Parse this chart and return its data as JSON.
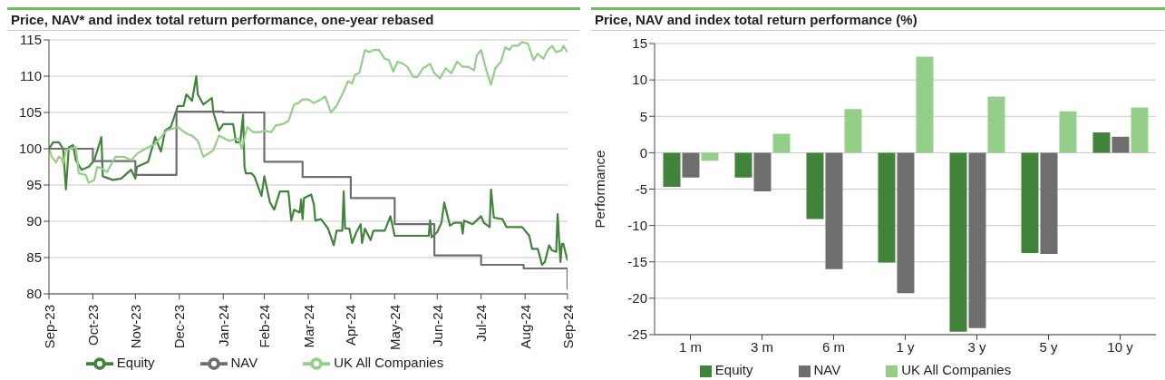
{
  "chart_data": [
    {
      "type": "line",
      "title": "Price, NAV* and index total return performance, one-year rebased",
      "xlim": [
        "2023-09-30",
        "2024-09-30"
      ],
      "xticks": [
        {
          "value": "2023-09-30",
          "label": "Sep-23"
        },
        {
          "value": "2023-10-31",
          "label": "Oct-23"
        },
        {
          "value": "2023-11-30",
          "label": "Nov-23"
        },
        {
          "value": "2023-12-31",
          "label": "Dec-23"
        },
        {
          "value": "2024-01-31",
          "label": "Jan-24"
        },
        {
          "value": "2024-02-29",
          "label": "Feb-24"
        },
        {
          "value": "2024-03-31",
          "label": "Mar-24"
        },
        {
          "value": "2024-04-30",
          "label": "Apr-24"
        },
        {
          "value": "2024-05-31",
          "label": "May-24"
        },
        {
          "value": "2024-06-30",
          "label": "Jun-24"
        },
        {
          "value": "2024-07-31",
          "label": "Jul-24"
        },
        {
          "value": "2024-08-31",
          "label": "Aug-24"
        },
        {
          "value": "2024-09-30",
          "label": "Sep-24"
        }
      ],
      "ylim": [
        80,
        115
      ],
      "yticks": [
        80,
        85,
        90,
        95,
        100,
        105,
        110,
        115
      ],
      "grid": "y",
      "legend": "bottom",
      "series": [
        {
          "name": "Equity",
          "type": "line",
          "color": "#41833a",
          "x": [
            "2023-09-30",
            "2023-10-03",
            "2023-10-07",
            "2023-10-10",
            "2023-10-12",
            "2023-10-14",
            "2023-10-17",
            "2023-10-19",
            "2023-10-23",
            "2023-10-28",
            "2023-11-01",
            "2023-11-06",
            "2023-11-07",
            "2023-11-14",
            "2023-11-20",
            "2023-11-27",
            "2023-11-30",
            "2023-12-01",
            "2023-12-09",
            "2023-12-14",
            "2023-12-18",
            "2023-12-21",
            "2023-12-25",
            "2023-12-30",
            "2024-01-03",
            "2024-01-05",
            "2024-01-09",
            "2024-01-12",
            "2024-01-13",
            "2024-01-17",
            "2024-01-23",
            "2024-01-24",
            "2024-01-28",
            "2024-01-31",
            "2024-02-07",
            "2024-02-09",
            "2024-02-12",
            "2024-02-14",
            "2024-02-15",
            "2024-02-16",
            "2024-02-20",
            "2024-02-22",
            "2024-02-27",
            "2024-02-29",
            "2024-03-04",
            "2024-03-07",
            "2024-03-11",
            "2024-03-17",
            "2024-03-19",
            "2024-03-21",
            "2024-03-25",
            "2024-03-26",
            "2024-03-27",
            "2024-03-28",
            "2024-04-02",
            "2024-04-04",
            "2024-04-05",
            "2024-04-09",
            "2024-04-14",
            "2024-04-18",
            "2024-04-20",
            "2024-04-24",
            "2024-04-25",
            "2024-04-26",
            "2024-04-29",
            "2024-05-01",
            "2024-05-04",
            "2024-05-07",
            "2024-05-08",
            "2024-05-10",
            "2024-05-14",
            "2024-05-16",
            "2024-05-24",
            "2024-05-28",
            "2024-05-31",
            "2024-06-11",
            "2024-06-24",
            "2024-06-25",
            "2024-06-26",
            "2024-06-30",
            "2024-07-03",
            "2024-07-05",
            "2024-07-09",
            "2024-07-12",
            "2024-07-17",
            "2024-07-18",
            "2024-07-19",
            "2024-07-25",
            "2024-07-31",
            "2024-08-02",
            "2024-08-06",
            "2024-08-07",
            "2024-08-09",
            "2024-08-15",
            "2024-08-18",
            "2024-08-29",
            "2024-09-03",
            "2024-09-05",
            "2024-09-09",
            "2024-09-12",
            "2024-09-14",
            "2024-09-17",
            "2024-09-19",
            "2024-09-22",
            "2024-09-23",
            "2024-09-25",
            "2024-09-26",
            "2024-09-27",
            "2024-09-30"
          ],
          "values": [
            100,
            100.9,
            100.9,
            100,
            94.4,
            100.2,
            100.5,
            98.4,
            97.1,
            97.5,
            98.4,
            101.6,
            96.2,
            95.7,
            95.9,
            97.1,
            95.9,
            97.5,
            98.2,
            101.6,
            99.6,
            102.5,
            103,
            105.9,
            105.9,
            107.5,
            106.6,
            110,
            107.5,
            106.1,
            107,
            105,
            102.5,
            103.4,
            103.4,
            100.9,
            100.9,
            104.7,
            97.5,
            96.6,
            96.6,
            96.2,
            93.5,
            96.2,
            92.6,
            91.6,
            94.1,
            94.1,
            90.1,
            91.6,
            91.2,
            93,
            90.3,
            93.2,
            93.7,
            92.3,
            90.1,
            90.3,
            89,
            86.7,
            88.7,
            88.7,
            94.1,
            89,
            89,
            87,
            88.5,
            89.6,
            87,
            89,
            87.4,
            88.7,
            88.7,
            90.7,
            88,
            88,
            88,
            90.1,
            87.8,
            88.5,
            89.8,
            92.6,
            89.4,
            89.8,
            89.8,
            88.3,
            90.1,
            89.6,
            90.7,
            89.8,
            89.2,
            94.4,
            90.5,
            90.3,
            89.2,
            89.2,
            88,
            86.2,
            86.2,
            84,
            84.4,
            86.7,
            86,
            85.8,
            91,
            84.4,
            86.9,
            86.9,
            84.6
          ]
        },
        {
          "name": "NAV",
          "type": "step",
          "color": "#6e6e6e",
          "x": [
            "2023-09-30",
            "2023-10-31",
            "2023-11-30",
            "2023-12-29",
            "2024-01-31",
            "2024-02-29",
            "2024-03-27",
            "2024-04-30",
            "2024-05-31",
            "2024-06-28",
            "2024-07-31",
            "2024-08-30",
            "2024-09-27",
            "2024-09-30"
          ],
          "values": [
            100,
            98.3,
            96.4,
            105.1,
            105,
            98.2,
            96.1,
            93.2,
            89.6,
            85.3,
            84,
            83.5,
            83.5,
            80.6
          ]
        },
        {
          "name": "UK All Companies",
          "type": "line",
          "color": "#94cf8a",
          "x": [
            "2023-09-30",
            "2023-10-02",
            "2023-10-05",
            "2023-10-07",
            "2023-10-09",
            "2023-10-10",
            "2023-10-12",
            "2023-10-15",
            "2023-10-19",
            "2023-10-21",
            "2023-10-26",
            "2023-10-28",
            "2023-11-01",
            "2023-11-03",
            "2023-11-06",
            "2023-11-10",
            "2023-11-16",
            "2023-11-22",
            "2023-11-27",
            "2023-12-01",
            "2023-12-07",
            "2023-12-14",
            "2023-12-22",
            "2023-12-30",
            "2024-01-02",
            "2024-01-06",
            "2024-01-09",
            "2024-01-13",
            "2024-01-17",
            "2024-01-24",
            "2024-01-28",
            "2024-02-04",
            "2024-02-11",
            "2024-02-13",
            "2024-02-17",
            "2024-02-21",
            "2024-02-26",
            "2024-02-29",
            "2024-03-05",
            "2024-03-08",
            "2024-03-13",
            "2024-03-17",
            "2024-03-21",
            "2024-03-24",
            "2024-03-27",
            "2024-03-31",
            "2024-04-04",
            "2024-04-09",
            "2024-04-12",
            "2024-04-16",
            "2024-04-20",
            "2024-04-25",
            "2024-04-28",
            "2024-05-01",
            "2024-05-03",
            "2024-05-06",
            "2024-05-10",
            "2024-05-13",
            "2024-05-16",
            "2024-05-20",
            "2024-05-24",
            "2024-05-27",
            "2024-05-30",
            "2024-06-02",
            "2024-06-06",
            "2024-06-09",
            "2024-06-13",
            "2024-06-16",
            "2024-06-20",
            "2024-06-25",
            "2024-06-28",
            "2024-07-02",
            "2024-07-06",
            "2024-07-10",
            "2024-07-14",
            "2024-07-18",
            "2024-07-22",
            "2024-07-26",
            "2024-07-28",
            "2024-07-31",
            "2024-08-04",
            "2024-08-07",
            "2024-08-10",
            "2024-08-14",
            "2024-08-17",
            "2024-08-20",
            "2024-08-22",
            "2024-08-26",
            "2024-08-29",
            "2024-09-02",
            "2024-09-06",
            "2024-09-09",
            "2024-09-13",
            "2024-09-16",
            "2024-09-19",
            "2024-09-22",
            "2024-09-26",
            "2024-09-27",
            "2024-09-30"
          ],
          "values": [
            100,
            98.9,
            98.1,
            98.9,
            98.6,
            97.9,
            99.8,
            100,
            100.2,
            96.6,
            96.4,
            95.3,
            95.7,
            97.5,
            97.3,
            96.8,
            98.9,
            98.9,
            98.4,
            99.3,
            100,
            100.7,
            102.5,
            103,
            102.5,
            102,
            101.8,
            101.1,
            98.9,
            99.8,
            101.8,
            101.1,
            101.4,
            100,
            103,
            102.3,
            102.3,
            102.5,
            102.3,
            103.2,
            103.4,
            103.8,
            106.1,
            106.3,
            106.8,
            106.8,
            106.3,
            106.8,
            107.2,
            105,
            105.9,
            107.9,
            109.3,
            109,
            110.2,
            110.4,
            113.6,
            113.3,
            113.6,
            113.6,
            112.4,
            112.2,
            110.6,
            112,
            111.7,
            111.3,
            109.9,
            109.9,
            111.1,
            111.7,
            110.4,
            109.7,
            111.1,
            110.4,
            112,
            111.3,
            111.3,
            110.8,
            112.9,
            113.6,
            110.6,
            108.8,
            111.1,
            112,
            114,
            113.6,
            114.2,
            114.2,
            114.7,
            114.5,
            112.2,
            113.1,
            112.4,
            113.6,
            114.2,
            113.3,
            113.6,
            114.2,
            113.3
          ]
        }
      ]
    },
    {
      "type": "bar",
      "title": "Price, NAV and index total return performance (%)",
      "ylabel": "Performance",
      "categories": [
        "1 m",
        "3 m",
        "6 m",
        "1 y",
        "3 y",
        "5 y",
        "10 y"
      ],
      "ylim": [
        -25,
        15
      ],
      "yticks": [
        -25,
        -20,
        -15,
        -10,
        -5,
        0,
        5,
        10,
        15
      ],
      "grid": "y",
      "legend": "bottom",
      "series": [
        {
          "name": "Equity",
          "color": "#41833a",
          "values": [
            -4.7,
            -3.4,
            -9.1,
            -15.1,
            -24.6,
            -13.8,
            2.8
          ]
        },
        {
          "name": "NAV",
          "color": "#6e6e6e",
          "values": [
            -3.4,
            -5.3,
            -16.0,
            -19.3,
            -24.1,
            -13.9,
            2.2
          ]
        },
        {
          "name": "UK All Companies",
          "color": "#94cf8a",
          "values": [
            -1.1,
            2.6,
            6.0,
            13.2,
            7.7,
            5.7,
            6.2
          ]
        }
      ]
    }
  ]
}
